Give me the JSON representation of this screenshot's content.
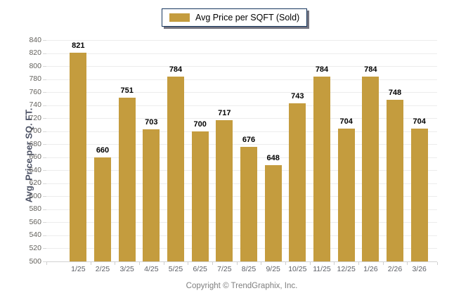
{
  "legend": {
    "label": "Avg Price per SQFT (Sold)",
    "swatch_color": "#C49C3E"
  },
  "chart_data": {
    "type": "bar",
    "title": "",
    "series_name": "Avg Price per SQFT (Sold)",
    "categories": [
      "1/25",
      "2/25",
      "3/25",
      "4/25",
      "5/25",
      "6/25",
      "7/25",
      "8/25",
      "9/25",
      "10/25",
      "11/25",
      "12/25",
      "1/26",
      "2/26",
      "3/26"
    ],
    "values": [
      821,
      660,
      751,
      703,
      784,
      700,
      717,
      676,
      648,
      743,
      784,
      704,
      784,
      748,
      704
    ],
    "xlabel": "",
    "ylabel": "Avg. Price per SQ. FT.",
    "ylim": [
      500,
      840
    ],
    "ytick_step": 20,
    "grid": true,
    "legend_position": "top-center",
    "bar_color": "#C49C3E"
  },
  "footer": {
    "copyright": "Copyright © TrendGraphix, Inc."
  },
  "colors": {
    "bar": "#C49C3E",
    "legend_border": "#17375E",
    "gridline": "#ECECEC",
    "axis_baseline": "#D2D2D2",
    "tick_text": "#63615C",
    "value_text": "#000000",
    "y_title_text": "#4C5265",
    "copyright_text": "#7F7F7F",
    "background": "#FFFFFF"
  }
}
